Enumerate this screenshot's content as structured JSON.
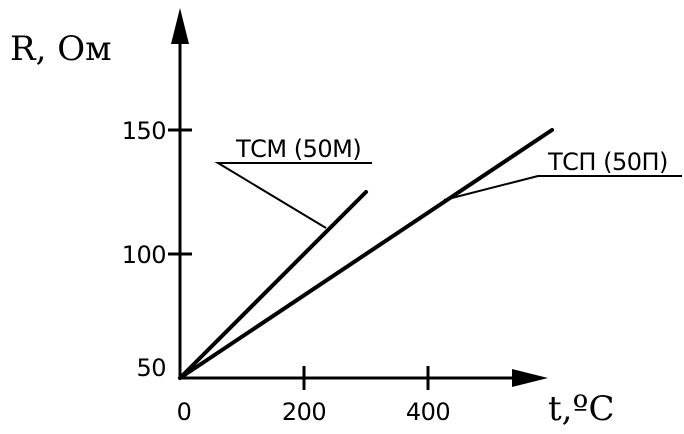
{
  "chart_data": {
    "type": "line",
    "ylabel": "R, Ом",
    "xlabel": "t,ºC",
    "xlim": [
      0,
      560
    ],
    "ylim": [
      50,
      150
    ],
    "x_ticks": [
      {
        "value": 0,
        "label": "0"
      },
      {
        "value": 200,
        "label": "200"
      },
      {
        "value": 400,
        "label": "400"
      }
    ],
    "y_ticks": [
      {
        "value": 50,
        "label": "50"
      },
      {
        "value": 100,
        "label": "100"
      },
      {
        "value": 150,
        "label": "150"
      }
    ],
    "series": [
      {
        "name": "ТСМ (50М)",
        "x": [
          0,
          300
        ],
        "y": [
          50,
          125
        ]
      },
      {
        "name": "ТСП (50П)",
        "x": [
          0,
          600
        ],
        "y": [
          50,
          150
        ]
      }
    ],
    "grid": false,
    "legend": "leader-line labels"
  }
}
